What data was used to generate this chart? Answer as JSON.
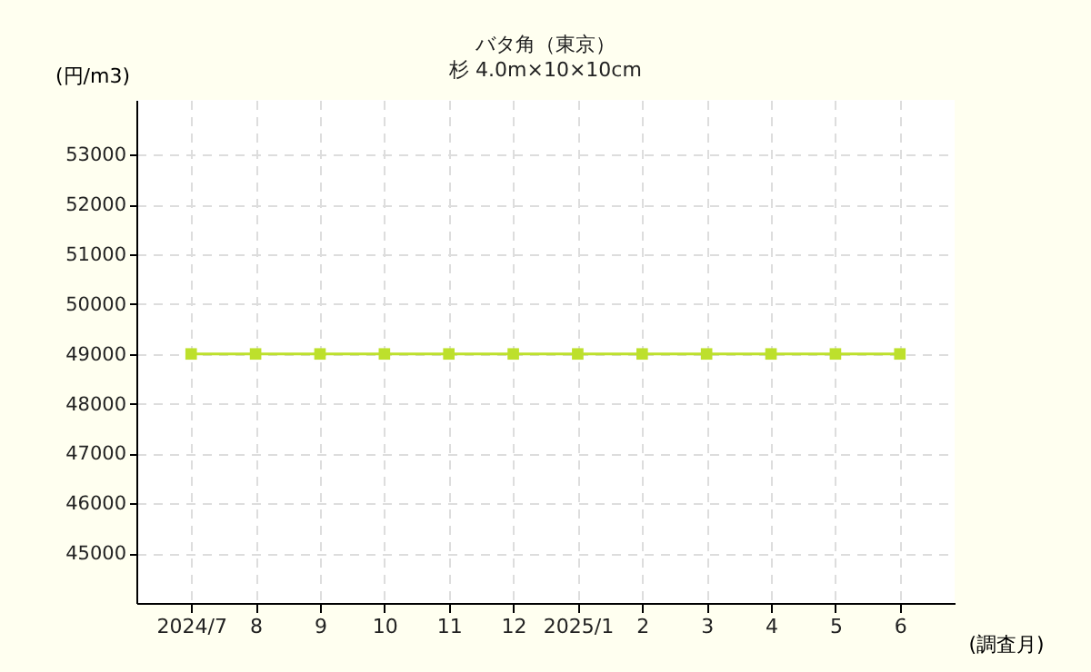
{
  "chart_data": {
    "type": "line",
    "title": "バタ角（東京）",
    "subtitle": "杉 4.0m×10×10cm",
    "ylabel": "(円/m3)",
    "xlabel": "(調査月)",
    "categories": [
      "2024/7",
      "8",
      "9",
      "10",
      "11",
      "12",
      "2025/1",
      "2",
      "3",
      "4",
      "5",
      "6"
    ],
    "series": [
      {
        "color": "#bde02c",
        "values": [
          49000,
          49000,
          49000,
          49000,
          49000,
          49000,
          49000,
          49000,
          49000,
          49000,
          49000,
          49000
        ]
      }
    ],
    "ylim": [
      44000,
      54100
    ],
    "yticks": [
      45000,
      46000,
      47000,
      48000,
      49000,
      50000,
      51000,
      52000,
      53000
    ],
    "grid": true,
    "marker": "square",
    "line_style": "solid"
  }
}
